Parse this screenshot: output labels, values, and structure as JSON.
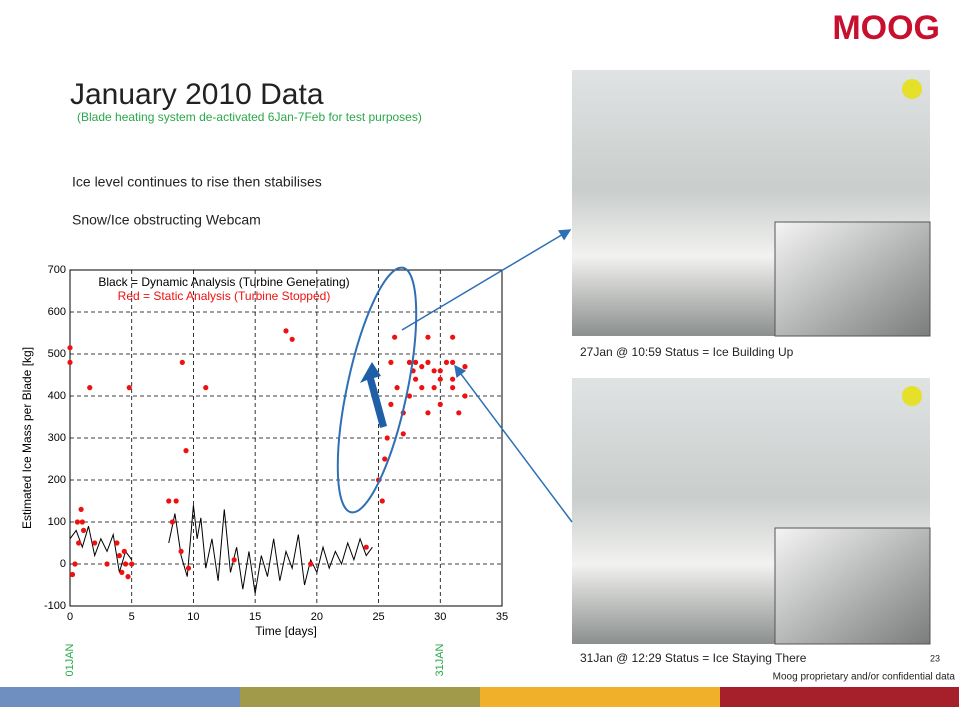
{
  "logo": "MOOG",
  "title": "January 2010 Data",
  "subtitle": "(Blade heating system de-activated 6Jan-7Feb for test purposes)",
  "bullets": [
    "Ice level continues to rise then stabilises",
    "Snow/Ice obstructing Webcam"
  ],
  "captions": [
    "27Jan @ 10:59  Status = Ice Building Up",
    "31Jan @ 12:29  Status = Ice Staying There"
  ],
  "page_number": "23",
  "footer": "Moog proprietary and/or confidential data",
  "chart_data": {
    "type": "scatter",
    "xlabel": "Time [days]",
    "ylabel": "Estimated Ice Mass per Blade [kg]",
    "xlim": [
      0,
      35
    ],
    "ylim": [
      -100,
      700
    ],
    "xticks": [
      0,
      5,
      10,
      15,
      20,
      25,
      30,
      35
    ],
    "yticks": [
      -100,
      0,
      100,
      200,
      300,
      400,
      500,
      600,
      700
    ],
    "grid": true,
    "annotations": [
      {
        "x": 0,
        "text": "01JAN"
      },
      {
        "x": 30,
        "text": "31JAN"
      }
    ],
    "series": [
      {
        "name": "Black = Dynamic Analysis (Turbine Generating)",
        "type": "line",
        "color": "#000000",
        "x": [
          0,
          0.5,
          1,
          1.5,
          2,
          2.5,
          3,
          3.5,
          4,
          4.5,
          5,
          6,
          8,
          8.5,
          9,
          9.5,
          10,
          10.3,
          10.6,
          11,
          11.5,
          12,
          12.5,
          13,
          13.5,
          14,
          14.5,
          15,
          15.5,
          16,
          16.5,
          17,
          17.5,
          18,
          18.5,
          19,
          19.5,
          20,
          20.5,
          21,
          21.5,
          22,
          22.5,
          23,
          23.5,
          24,
          24.5
        ],
        "values": [
          60,
          80,
          40,
          90,
          20,
          60,
          30,
          70,
          -20,
          30,
          10,
          null,
          50,
          120,
          20,
          -30,
          140,
          60,
          110,
          -10,
          60,
          -40,
          130,
          -20,
          40,
          -60,
          30,
          -70,
          20,
          -30,
          60,
          -40,
          30,
          -10,
          70,
          -50,
          10,
          -20,
          40,
          -10,
          30,
          0,
          50,
          10,
          60,
          20,
          40
        ]
      },
      {
        "name": "Red = Static Analysis (Turbine Stopped)",
        "type": "scatter",
        "color": "#ee1111",
        "x": [
          0,
          0,
          0.2,
          0.4,
          0.6,
          0.9,
          1,
          1.1,
          0.7,
          1.6,
          2,
          3,
          3.8,
          4,
          4.2,
          4.4,
          4.5,
          4.7,
          4.8,
          5,
          8,
          8.3,
          8.6,
          9,
          9.1,
          9.4,
          9.6,
          11,
          17.5,
          18,
          13.3,
          19.5,
          24,
          25,
          25.3,
          25.5,
          25.7,
          26,
          26,
          26.3,
          26.5,
          27,
          27,
          27.5,
          27.5,
          28,
          28.5,
          29,
          29,
          29.5,
          30,
          30,
          30.5,
          31,
          31,
          31.5,
          32,
          32,
          28,
          29,
          30,
          31,
          28.5,
          27.8,
          29.5,
          31
        ],
        "values": [
          515,
          480,
          -25,
          0,
          100,
          130,
          100,
          80,
          50,
          420,
          50,
          0,
          50,
          20,
          -20,
          30,
          0,
          -30,
          420,
          0,
          150,
          100,
          150,
          30,
          480,
          270,
          -10,
          420,
          555,
          535,
          10,
          0,
          40,
          200,
          150,
          250,
          300,
          380,
          480,
          540,
          420,
          310,
          360,
          400,
          480,
          440,
          470,
          360,
          540,
          420,
          460,
          380,
          480,
          540,
          440,
          360,
          400,
          470,
          480,
          480,
          440,
          480,
          420,
          460,
          460,
          420
        ]
      }
    ]
  }
}
